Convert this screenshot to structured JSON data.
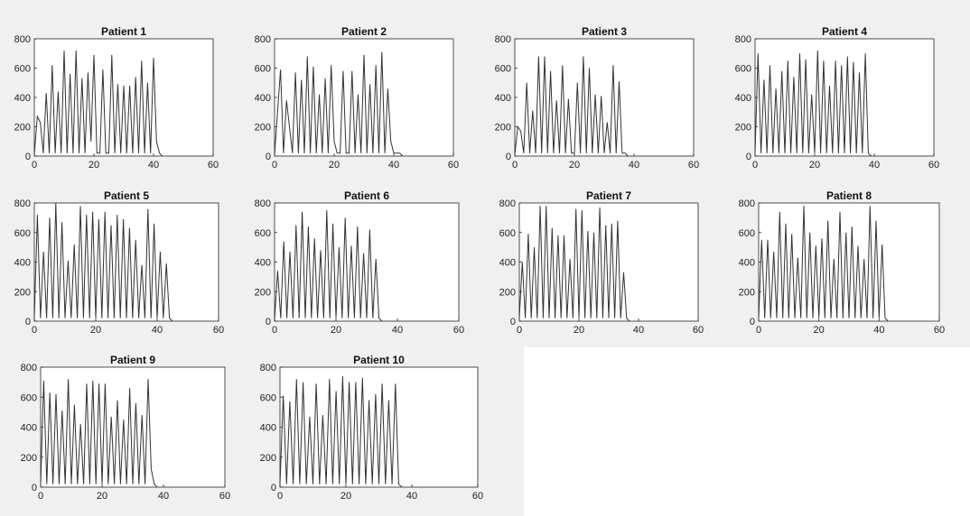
{
  "figure": {
    "background_color": "#f0f0f0",
    "axes_color": "#ffffff",
    "line_color": "#333333"
  },
  "chart_data": [
    {
      "type": "line",
      "title": "Patient 1",
      "xlim": [
        0,
        60
      ],
      "ylim": [
        0,
        800
      ],
      "xticks": [
        0,
        20,
        40,
        60
      ],
      "yticks": [
        0,
        200,
        400,
        600,
        800
      ],
      "grid": false,
      "x": [
        0,
        1,
        2,
        3,
        4,
        5,
        6,
        7,
        8,
        9,
        10,
        11,
        12,
        13,
        14,
        15,
        16,
        17,
        18,
        19,
        20,
        21,
        22,
        23,
        24,
        25,
        26,
        27,
        28,
        29,
        30,
        31,
        32,
        33,
        34,
        35,
        36,
        37,
        38,
        39,
        40,
        41,
        42,
        43,
        44,
        45,
        46,
        47,
        48,
        49,
        50,
        51,
        52,
        53,
        54,
        55,
        56,
        57,
        58,
        59,
        60
      ],
      "y": [
        10,
        270,
        230,
        20,
        430,
        20,
        620,
        20,
        440,
        20,
        720,
        20,
        560,
        20,
        720,
        20,
        530,
        20,
        570,
        100,
        690,
        20,
        20,
        590,
        20,
        20,
        690,
        20,
        490,
        20,
        480,
        20,
        480,
        20,
        540,
        20,
        650,
        20,
        500,
        20,
        670,
        100,
        20,
        0,
        0,
        0,
        0,
        0,
        0,
        0,
        0,
        0,
        0,
        0,
        0,
        0,
        0,
        0,
        0,
        0,
        0
      ]
    },
    {
      "type": "line",
      "title": "Patient 2",
      "xlim": [
        0,
        60
      ],
      "ylim": [
        0,
        800
      ],
      "xticks": [
        0,
        20,
        40,
        60
      ],
      "yticks": [
        0,
        200,
        400,
        600,
        800
      ],
      "grid": false,
      "x": [
        0,
        2,
        3,
        4,
        6,
        7,
        8,
        9,
        10,
        11,
        12,
        13,
        14,
        15,
        16,
        17,
        18,
        19,
        20,
        21,
        22,
        23,
        24,
        25,
        26,
        27,
        28,
        29,
        30,
        31,
        32,
        33,
        34,
        35,
        36,
        37,
        38,
        39,
        40,
        41,
        42,
        43,
        44,
        45,
        46,
        47,
        48,
        49,
        50,
        51,
        52,
        53,
        54,
        55,
        56,
        57,
        58,
        59,
        60
      ],
      "y": [
        10,
        590,
        20,
        380,
        20,
        570,
        20,
        520,
        20,
        680,
        20,
        610,
        20,
        420,
        20,
        530,
        20,
        620,
        100,
        20,
        20,
        580,
        20,
        20,
        580,
        20,
        420,
        20,
        690,
        20,
        490,
        20,
        620,
        20,
        710,
        20,
        460,
        100,
        20,
        20,
        20,
        0,
        0,
        0,
        0,
        0,
        0,
        0,
        0,
        0,
        0,
        0,
        0,
        0,
        0,
        0,
        0,
        0,
        0
      ]
    },
    {
      "type": "line",
      "title": "Patient 3",
      "xlim": [
        0,
        60
      ],
      "ylim": [
        0,
        800
      ],
      "xticks": [
        0,
        20,
        40,
        60
      ],
      "yticks": [
        0,
        200,
        400,
        600,
        800
      ],
      "grid": false,
      "x": [
        0,
        1,
        2,
        3,
        4,
        5,
        6,
        7,
        8,
        9,
        10,
        11,
        12,
        13,
        14,
        15,
        16,
        17,
        18,
        19,
        20,
        21,
        22,
        23,
        24,
        25,
        26,
        27,
        28,
        29,
        30,
        31,
        32,
        33,
        34,
        35,
        36,
        37,
        38,
        39,
        40,
        41,
        42,
        43,
        44,
        45,
        46,
        47,
        48,
        49,
        50,
        51,
        52,
        53,
        54,
        55,
        56,
        57,
        58,
        59,
        60
      ],
      "y": [
        10,
        200,
        170,
        20,
        500,
        20,
        310,
        20,
        680,
        20,
        680,
        20,
        580,
        20,
        380,
        20,
        620,
        20,
        390,
        20,
        20,
        500,
        20,
        680,
        20,
        600,
        20,
        420,
        20,
        410,
        20,
        230,
        20,
        620,
        20,
        510,
        20,
        20,
        0,
        0,
        0,
        0,
        0,
        0,
        0,
        0,
        0,
        0,
        0,
        0,
        0,
        0,
        0,
        0,
        0,
        0,
        0,
        0,
        0,
        0,
        0
      ]
    },
    {
      "type": "line",
      "title": "Patient 4",
      "xlim": [
        0,
        60
      ],
      "ylim": [
        0,
        800
      ],
      "xticks": [
        0,
        20,
        40,
        60
      ],
      "yticks": [
        0,
        200,
        400,
        600,
        800
      ],
      "grid": false,
      "x": [
        0,
        1,
        2,
        3,
        4,
        5,
        6,
        7,
        8,
        9,
        10,
        11,
        12,
        13,
        14,
        15,
        16,
        17,
        18,
        19,
        20,
        21,
        22,
        23,
        24,
        25,
        26,
        27,
        28,
        29,
        30,
        31,
        32,
        33,
        34,
        35,
        36,
        37,
        38,
        39,
        40,
        41,
        42,
        43,
        44,
        45,
        46,
        47,
        48,
        49,
        50,
        51,
        52,
        53,
        54,
        55,
        56,
        57,
        58,
        59,
        60
      ],
      "y": [
        20,
        700,
        20,
        520,
        20,
        620,
        20,
        460,
        20,
        580,
        20,
        650,
        20,
        540,
        20,
        700,
        20,
        660,
        20,
        420,
        20,
        720,
        20,
        650,
        20,
        480,
        20,
        650,
        20,
        620,
        20,
        680,
        20,
        640,
        20,
        570,
        20,
        700,
        20,
        0,
        0,
        0,
        0,
        0,
        0,
        0,
        0,
        0,
        0,
        0,
        0,
        0,
        0,
        0,
        0,
        0,
        0,
        0,
        0,
        0,
        0
      ]
    },
    {
      "type": "line",
      "title": "Patient 5",
      "xlim": [
        0,
        60
      ],
      "ylim": [
        0,
        800
      ],
      "xticks": [
        0,
        20,
        40,
        60
      ],
      "yticks": [
        0,
        200,
        400,
        600,
        800
      ],
      "grid": false,
      "x": [
        0,
        1,
        2,
        3,
        4,
        5,
        6,
        7,
        8,
        9,
        10,
        11,
        12,
        13,
        14,
        15,
        16,
        17,
        18,
        19,
        20,
        21,
        22,
        23,
        24,
        25,
        26,
        27,
        28,
        29,
        30,
        31,
        32,
        33,
        34,
        35,
        36,
        37,
        38,
        39,
        40,
        41,
        42,
        43,
        44,
        45,
        46,
        47,
        48,
        49,
        50,
        51,
        52,
        53,
        54,
        55,
        56,
        57,
        58,
        59,
        60
      ],
      "y": [
        20,
        720,
        20,
        470,
        20,
        700,
        20,
        800,
        20,
        670,
        20,
        410,
        20,
        520,
        20,
        780,
        20,
        720,
        20,
        740,
        20,
        690,
        20,
        740,
        20,
        650,
        20,
        720,
        20,
        690,
        20,
        630,
        20,
        550,
        20,
        380,
        20,
        760,
        20,
        660,
        20,
        470,
        20,
        390,
        20,
        0,
        0,
        0,
        0,
        0,
        0,
        0,
        0,
        0,
        0,
        0,
        0,
        0,
        0,
        0,
        0
      ]
    },
    {
      "type": "line",
      "title": "Patient 6",
      "xlim": [
        0,
        60
      ],
      "ylim": [
        0,
        800
      ],
      "xticks": [
        0,
        20,
        40,
        60
      ],
      "yticks": [
        0,
        200,
        400,
        600,
        800
      ],
      "grid": false,
      "x": [
        0,
        1,
        2,
        3,
        4,
        5,
        6,
        7,
        8,
        9,
        10,
        11,
        12,
        13,
        14,
        15,
        16,
        17,
        18,
        19,
        20,
        21,
        22,
        23,
        24,
        25,
        26,
        27,
        28,
        29,
        30,
        31,
        32,
        33,
        34,
        35,
        36,
        37,
        38,
        39,
        40,
        41,
        42,
        43,
        44,
        45,
        46,
        47,
        48,
        49,
        50,
        51,
        52,
        53,
        54,
        55,
        56,
        57,
        58,
        59,
        60
      ],
      "y": [
        10,
        340,
        20,
        540,
        20,
        470,
        20,
        650,
        20,
        740,
        20,
        640,
        20,
        560,
        20,
        480,
        20,
        750,
        20,
        660,
        20,
        500,
        20,
        700,
        20,
        510,
        20,
        640,
        20,
        460,
        20,
        620,
        20,
        420,
        20,
        0,
        0,
        0,
        0,
        0,
        0,
        0,
        0,
        0,
        0,
        0,
        0,
        0,
        0,
        0,
        0,
        0,
        0,
        0,
        0,
        0,
        0,
        0,
        0,
        0,
        0
      ]
    },
    {
      "type": "line",
      "title": "Patient 7",
      "xlim": [
        0,
        60
      ],
      "ylim": [
        0,
        800
      ],
      "xticks": [
        0,
        20,
        40,
        60
      ],
      "yticks": [
        0,
        200,
        400,
        600,
        800
      ],
      "grid": false,
      "x": [
        0,
        1,
        2,
        3,
        4,
        5,
        6,
        7,
        8,
        9,
        10,
        11,
        12,
        13,
        14,
        15,
        16,
        17,
        18,
        19,
        20,
        21,
        22,
        23,
        24,
        25,
        26,
        27,
        28,
        29,
        30,
        31,
        32,
        33,
        34,
        35,
        36,
        37,
        38,
        39,
        40,
        41,
        42,
        43,
        44,
        45,
        46,
        47,
        48,
        49,
        50,
        51,
        52,
        53,
        54,
        55,
        56,
        57,
        58,
        59,
        60
      ],
      "y": [
        20,
        400,
        20,
        590,
        20,
        500,
        20,
        780,
        20,
        780,
        20,
        630,
        20,
        580,
        20,
        580,
        20,
        420,
        20,
        760,
        20,
        750,
        20,
        610,
        20,
        600,
        20,
        770,
        20,
        650,
        20,
        660,
        20,
        680,
        20,
        330,
        20,
        0,
        0,
        0,
        0,
        0,
        0,
        0,
        0,
        0,
        0,
        0,
        0,
        0,
        0,
        0,
        0,
        0,
        0,
        0,
        0,
        0,
        0,
        0,
        0
      ]
    },
    {
      "type": "line",
      "title": "Patient 8",
      "xlim": [
        0,
        60
      ],
      "ylim": [
        0,
        800
      ],
      "xticks": [
        0,
        20,
        40,
        60
      ],
      "yticks": [
        0,
        200,
        400,
        600,
        800
      ],
      "grid": false,
      "x": [
        0,
        1,
        2,
        3,
        4,
        5,
        6,
        7,
        8,
        9,
        10,
        11,
        12,
        13,
        14,
        15,
        16,
        17,
        18,
        19,
        20,
        21,
        22,
        23,
        24,
        25,
        26,
        27,
        28,
        29,
        30,
        31,
        32,
        33,
        34,
        35,
        36,
        37,
        38,
        39,
        40,
        41,
        42,
        43,
        44,
        45,
        46,
        47,
        48,
        49,
        50,
        51,
        52,
        53,
        54,
        55,
        56,
        57,
        58,
        59,
        60
      ],
      "y": [
        20,
        550,
        20,
        550,
        20,
        470,
        20,
        740,
        20,
        660,
        20,
        590,
        20,
        430,
        20,
        780,
        20,
        600,
        20,
        510,
        20,
        560,
        20,
        680,
        20,
        420,
        20,
        740,
        20,
        600,
        20,
        640,
        20,
        510,
        20,
        420,
        20,
        780,
        20,
        680,
        20,
        520,
        20,
        0,
        0,
        0,
        0,
        0,
        0,
        0,
        0,
        0,
        0,
        0,
        0,
        0,
        0,
        0,
        0,
        0,
        0
      ]
    },
    {
      "type": "line",
      "title": "Patient 9",
      "xlim": [
        0,
        60
      ],
      "ylim": [
        0,
        800
      ],
      "xticks": [
        0,
        20,
        40,
        60
      ],
      "yticks": [
        0,
        200,
        400,
        600,
        800
      ],
      "grid": false,
      "x": [
        0,
        1,
        2,
        3,
        4,
        5,
        6,
        7,
        8,
        9,
        10,
        11,
        12,
        13,
        14,
        15,
        16,
        17,
        18,
        19,
        20,
        21,
        22,
        23,
        24,
        25,
        26,
        27,
        28,
        29,
        30,
        31,
        32,
        33,
        34,
        35,
        36,
        37,
        38,
        39,
        40,
        41,
        42,
        43,
        44,
        45,
        46,
        47,
        48,
        49,
        50,
        51,
        52,
        53,
        54,
        55,
        56,
        57,
        58,
        59,
        60
      ],
      "y": [
        20,
        710,
        20,
        630,
        20,
        620,
        20,
        510,
        20,
        720,
        20,
        550,
        20,
        420,
        20,
        690,
        20,
        710,
        20,
        690,
        20,
        690,
        20,
        470,
        20,
        580,
        20,
        450,
        20,
        660,
        20,
        560,
        20,
        480,
        20,
        720,
        120,
        20,
        0,
        0,
        0,
        0,
        0,
        0,
        0,
        0,
        0,
        0,
        0,
        0,
        0,
        0,
        0,
        0,
        0,
        0,
        0,
        0,
        0,
        0,
        0
      ]
    },
    {
      "type": "line",
      "title": "Patient 10",
      "xlim": [
        0,
        60
      ],
      "ylim": [
        0,
        800
      ],
      "xticks": [
        0,
        20,
        40,
        60
      ],
      "yticks": [
        0,
        200,
        400,
        600,
        800
      ],
      "grid": false,
      "x": [
        0,
        1,
        2,
        3,
        4,
        5,
        6,
        7,
        8,
        9,
        10,
        11,
        12,
        13,
        14,
        15,
        16,
        17,
        18,
        19,
        20,
        21,
        22,
        23,
        24,
        25,
        26,
        27,
        28,
        29,
        30,
        31,
        32,
        33,
        34,
        35,
        36,
        37,
        38,
        39,
        40,
        41,
        42,
        43,
        44,
        45,
        46,
        47,
        48,
        49,
        50,
        51,
        52,
        53,
        54,
        55,
        56,
        57,
        58,
        59,
        60
      ],
      "y": [
        20,
        610,
        20,
        570,
        20,
        720,
        20,
        700,
        20,
        470,
        20,
        690,
        20,
        480,
        20,
        720,
        20,
        640,
        20,
        740,
        20,
        700,
        20,
        700,
        20,
        730,
        20,
        580,
        20,
        620,
        20,
        690,
        20,
        580,
        20,
        690,
        20,
        0,
        0,
        0,
        0,
        0,
        0,
        0,
        0,
        0,
        0,
        0,
        0,
        0,
        0,
        0,
        0,
        0,
        0,
        0,
        0,
        0,
        0,
        0,
        0
      ]
    }
  ]
}
